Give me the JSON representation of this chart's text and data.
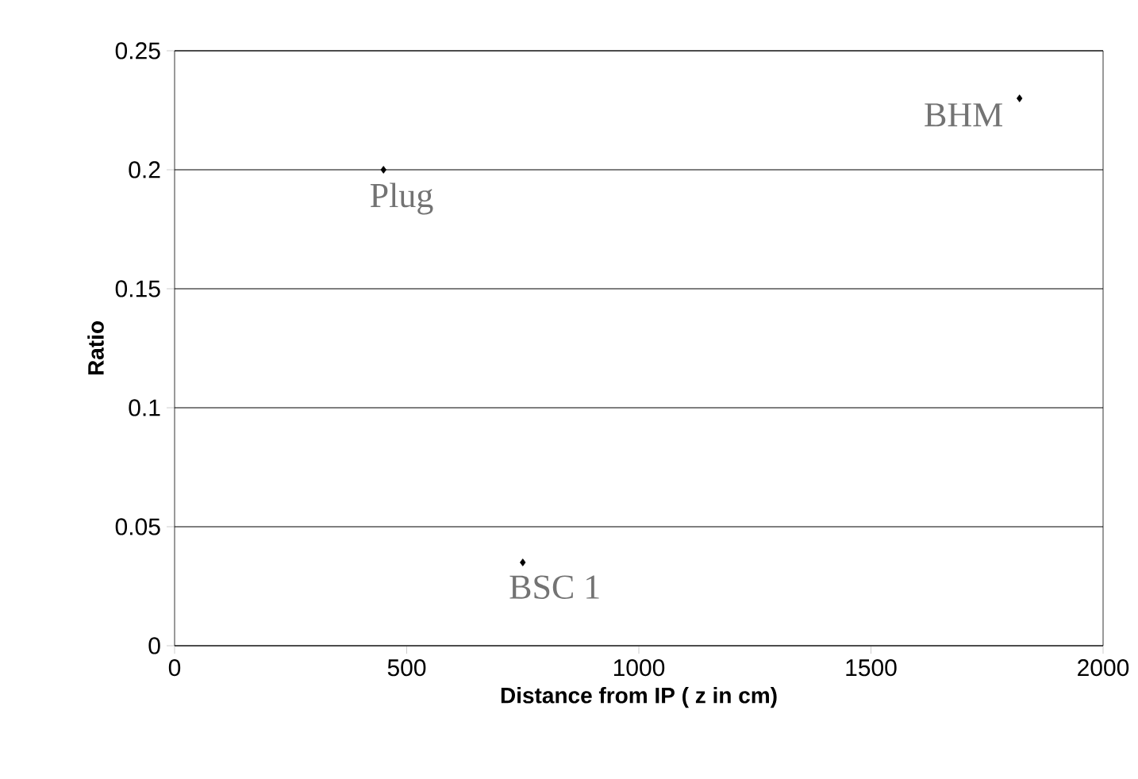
{
  "chart_data": {
    "type": "scatter",
    "xlabel": "Distance from IP ( z in cm)",
    "ylabel": "Ratio",
    "x": [
      450,
      750,
      1820
    ],
    "values": [
      0.2,
      0.035,
      0.23
    ],
    "color": "#000000",
    "marker": "diamond",
    "grid": "y",
    "xlim": [
      0,
      2000
    ],
    "xticks": [
      0,
      500,
      1000,
      1500,
      2000
    ],
    "ylim": [
      0,
      0.25
    ],
    "yticks": [
      0,
      0.05,
      0.1,
      0.15,
      0.2,
      0.25
    ],
    "annotations": [
      {
        "text": "Plug",
        "x": 450,
        "y": 0.2
      },
      {
        "text": "BSC 1",
        "x": 750,
        "y": 0.035
      },
      {
        "text": "BHM",
        "x": 1820,
        "y": 0.23
      }
    ]
  }
}
